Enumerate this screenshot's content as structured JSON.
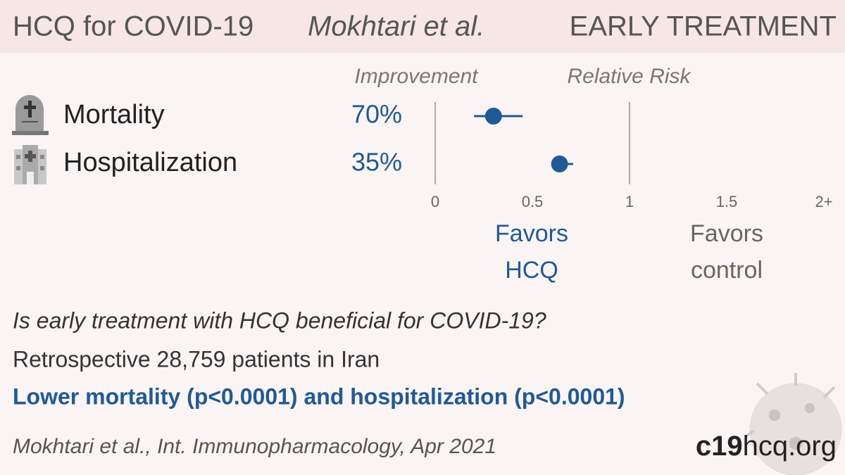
{
  "header": {
    "title": "HCQ for COVID-19",
    "authors": "Mokhtari et al.",
    "stage": "EARLY TREATMENT"
  },
  "chart_data": {
    "type": "forest",
    "categories": [
      "Mortality",
      "Hospitalization"
    ],
    "improvement_header": "Improvement",
    "x_label": "Relative Risk",
    "improvement": [
      70,
      35
    ],
    "improvement_labels": [
      "70%",
      "35%"
    ],
    "values": [
      0.3,
      0.64
    ],
    "lower": [
      0.2,
      0.61
    ],
    "upper": [
      0.45,
      0.71
    ],
    "color": "#1f5a96",
    "xlim": [
      0,
      2
    ],
    "xticks": [
      0,
      0.5,
      1,
      1.5,
      {
        "value": 2,
        "label": "2+"
      }
    ],
    "ref_lines": [
      0,
      1
    ],
    "favors_left": "Favors HCQ",
    "favors_right": "Favors control"
  },
  "summary": {
    "question": "Is early treatment with HCQ beneficial for COVID-19?",
    "details": "Retrospective 28,759 patients in Iran",
    "conclusion": "Lower mortality (p<0.0001) and hospitalization (p<0.0001)"
  },
  "footer": {
    "citation": "Mokhtari et al., Int. Immunopharmacology, Apr 2021",
    "site_bold": "c19",
    "site_rest": "hcq.org"
  }
}
